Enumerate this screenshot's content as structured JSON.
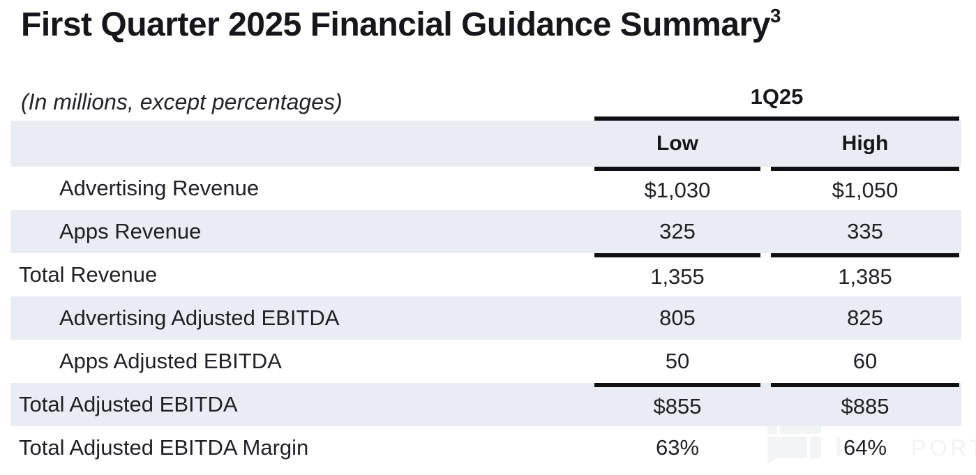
{
  "title": {
    "text": "First Quarter 2025 Financial Guidance Summary",
    "superscript": "3"
  },
  "table": {
    "note": "(In millions, except percentages)",
    "period_header": "1Q25",
    "column_headers": {
      "low": "Low",
      "high": "High"
    },
    "rows": [
      {
        "label": "Advertising Revenue",
        "low": "$1,030",
        "high": "$1,050",
        "indent": true,
        "shaded": false
      },
      {
        "label": "Apps Revenue",
        "low": "325",
        "high": "335",
        "indent": true,
        "shaded": true
      },
      {
        "label": "Total Revenue",
        "low": "1,355",
        "high": "1,385",
        "indent": false,
        "shaded": false
      },
      {
        "label": "Advertising Adjusted EBITDA",
        "low": "805",
        "high": "825",
        "indent": true,
        "shaded": true
      },
      {
        "label": "Apps Adjusted EBITDA",
        "low": "50",
        "high": "60",
        "indent": true,
        "shaded": false
      },
      {
        "label": "Total Adjusted EBITDA",
        "low": "$855",
        "high": "$885",
        "indent": false,
        "shaded": true
      },
      {
        "label": "Total Adjusted EBITDA Margin",
        "low": "63%",
        "high": "64%",
        "indent": false,
        "shaded": false
      }
    ]
  },
  "watermark": {
    "visible_text": "PORT"
  },
  "colors": {
    "row_band": "#e9ecf2",
    "rule_line": "#101014",
    "text": "#202026",
    "watermark": "#f3f4f6"
  }
}
